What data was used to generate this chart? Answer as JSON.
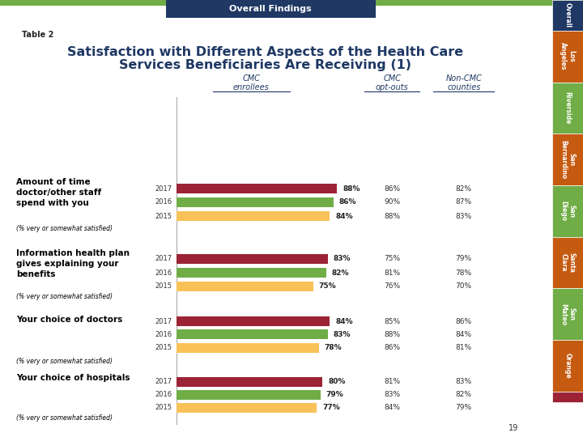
{
  "title_line1": "Satisfaction with Different Aspects of the Health Care",
  "title_line2": "Services Beneficiaries Are Receiving (1)",
  "title_color": "#1F3864",
  "table_label": "Table 2",
  "header_title": "Overall Findings",
  "header_bg": "#1F3864",
  "header_text_color": "#FFFFFF",
  "top_bar_color": "#70AD47",
  "col_header_color": "#1F3864",
  "categories": [
    {
      "label_bold": "Amount of time\ndoctor/other staff\nspend with you",
      "sublabel": "(% very or somewhat satisfied)",
      "years": [
        "2017",
        "2016",
        "2015"
      ],
      "cmc_values": [
        88,
        86,
        84
      ],
      "opt_out_values": [
        "86%",
        "90%",
        "88%"
      ],
      "non_cmc_values": [
        "82%",
        "87%",
        "83%"
      ]
    },
    {
      "label_bold": "Information health plan\ngives explaining your\nbenefits",
      "sublabel": "(% very or somewhat satisfied)",
      "years": [
        "2017",
        "2016",
        "2015"
      ],
      "cmc_values": [
        83,
        82,
        75
      ],
      "opt_out_values": [
        "75%",
        "81%",
        "76%"
      ],
      "non_cmc_values": [
        "79%",
        "78%",
        "70%"
      ]
    },
    {
      "label_bold": "Your choice of doctors",
      "sublabel": "(% very or somewhat satisfied)",
      "years": [
        "2017",
        "2016",
        "2015"
      ],
      "cmc_values": [
        84,
        83,
        78
      ],
      "opt_out_values": [
        "85%",
        "88%",
        "86%"
      ],
      "non_cmc_values": [
        "86%",
        "84%",
        "81%"
      ]
    },
    {
      "label_bold": "Your choice of hospitals",
      "sublabel": "(% very or somewhat satisfied)",
      "years": [
        "2017",
        "2016",
        "2015"
      ],
      "cmc_values": [
        80,
        79,
        77
      ],
      "opt_out_values": [
        "81%",
        "83%",
        "84%"
      ],
      "non_cmc_values": [
        "83%",
        "82%",
        "79%"
      ]
    }
  ],
  "bar_colors": [
    "#9B2335",
    "#70AD47",
    "#F9C258"
  ],
  "background_color": "#FFFFFF",
  "page_number": "19",
  "right_tabs": [
    {
      "label": "Overall",
      "color": "#1F3864",
      "text_color": "#FFFFFF"
    },
    {
      "label": "Los\nAngeles",
      "color": "#C55A11",
      "text_color": "#FFFFFF"
    },
    {
      "label": "Riverside",
      "color": "#70AD47",
      "text_color": "#FFFFFF"
    },
    {
      "label": "San\nBernardino",
      "color": "#C55A11",
      "text_color": "#FFFFFF"
    },
    {
      "label": "San\nDiego",
      "color": "#70AD47",
      "text_color": "#FFFFFF"
    },
    {
      "label": "Santa\nClara",
      "color": "#C55A11",
      "text_color": "#FFFFFF"
    },
    {
      "label": "San\nMateo",
      "color": "#70AD47",
      "text_color": "#FFFFFF"
    },
    {
      "label": "Orange",
      "color": "#C55A11",
      "text_color": "#FFFFFF"
    },
    {
      "label": "",
      "color": "#9B2335",
      "text_color": "#FFFFFF"
    }
  ]
}
